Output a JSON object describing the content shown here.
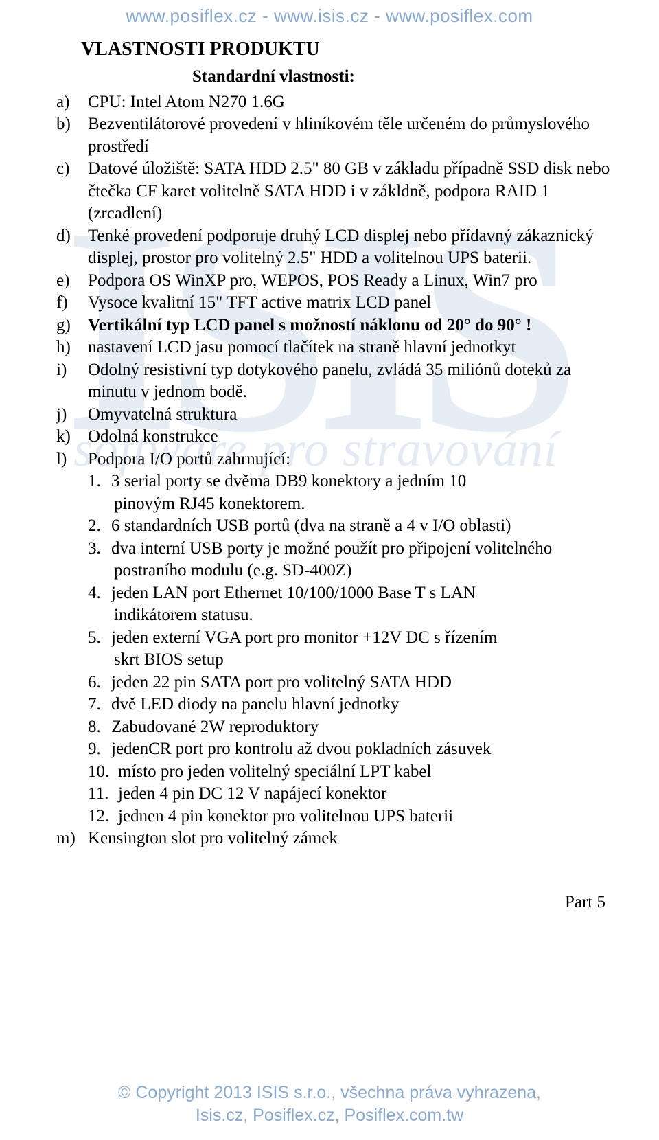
{
  "watermark": {
    "top": "www.posiflex.cz  -  www.isis.cz  -  www.posiflex.com",
    "logo": "ISIS",
    "sub": "software pro stravování"
  },
  "heading": "VLASTNOSTI PRODUKTU",
  "subheading": "Standardní vlastnosti:",
  "items": {
    "a": "CPU: Intel Atom N270 1.6G",
    "b": "Bezventilátorové provedení v hliníkovém těle určeném do průmyslového prostředí",
    "c": "Datové úložiště: SATA HDD 2.5\" 80 GB v základu případně SSD disk nebo čtečka CF karet volitelně SATA HDD i v zákldně, podpora RAID 1 (zrcadlení)",
    "d": "Tenké provedení podporuje druhý LCD displej nebo přídavný zákaznický displej, prostor pro volitelný 2.5\" HDD a volitelnou UPS baterii.",
    "e": "Podpora OS WinXP pro, WEPOS, POS Ready a Linux, Win7 pro",
    "f": "Vysoce kvalitní 15\" TFT active matrix LCD panel",
    "g": "Vertikální typ LCD panel s možností náklonu od 20° do 90° !",
    "h": "nastavení LCD jasu pomocí tlačítek na straně hlavní jednotkyt",
    "i": "Odolný resistivní typ dotykového panelu, zvládá 35 miliónů doteků za minutu v jednom bodě.",
    "j": "Omyvatelná struktura",
    "k": "Odolná konstrukce",
    "l": "Podpora I/O portů zahrnující:",
    "m": "Kensington slot pro volitelný zámek"
  },
  "sub_l": {
    "1a": "3 serial porty se dvěma DB9 konektory a jedním 10",
    "1b": "pinovým RJ45 konektorem.",
    "2": " 6 standardních USB portů (dva na straně a 4 v I/O oblasti)",
    "3a": "dva interní USB porty je možné použít pro připojení volitelného",
    "3b": "postraního modulu (e.g. SD-400Z)",
    "4a": "jeden LAN port Ethernet  10/100/1000 Base T s LAN",
    "4b": "indikátorem statusu.",
    "5a": " jeden externí VGA port pro monitor +12V DC s řízením",
    "5b": "skrt BIOS setup",
    "6": "jeden 22 pin SATA port pro volitelný SATA HDD",
    "7": "dvě LED diody na panelu hlavní jednotky",
    "8": "Zabudované 2W reproduktory",
    "9": "jedenCR port pro kontrolu až dvou pokladních zásuvek",
    "10": "místo pro jeden volitelný speciální LPT kabel",
    "11": "jeden 4 pin DC 12 V napájecí konektor",
    "12": "jednen 4 pin konektor pro volitelnou UPS baterii"
  },
  "part": "Part 5",
  "footer": {
    "l1": "© Copyright 2013 ISIS s.r.o., všechna práva vyhrazena,",
    "l2": "Isis.cz, Posiflex.cz, Posiflex.com.tw"
  }
}
